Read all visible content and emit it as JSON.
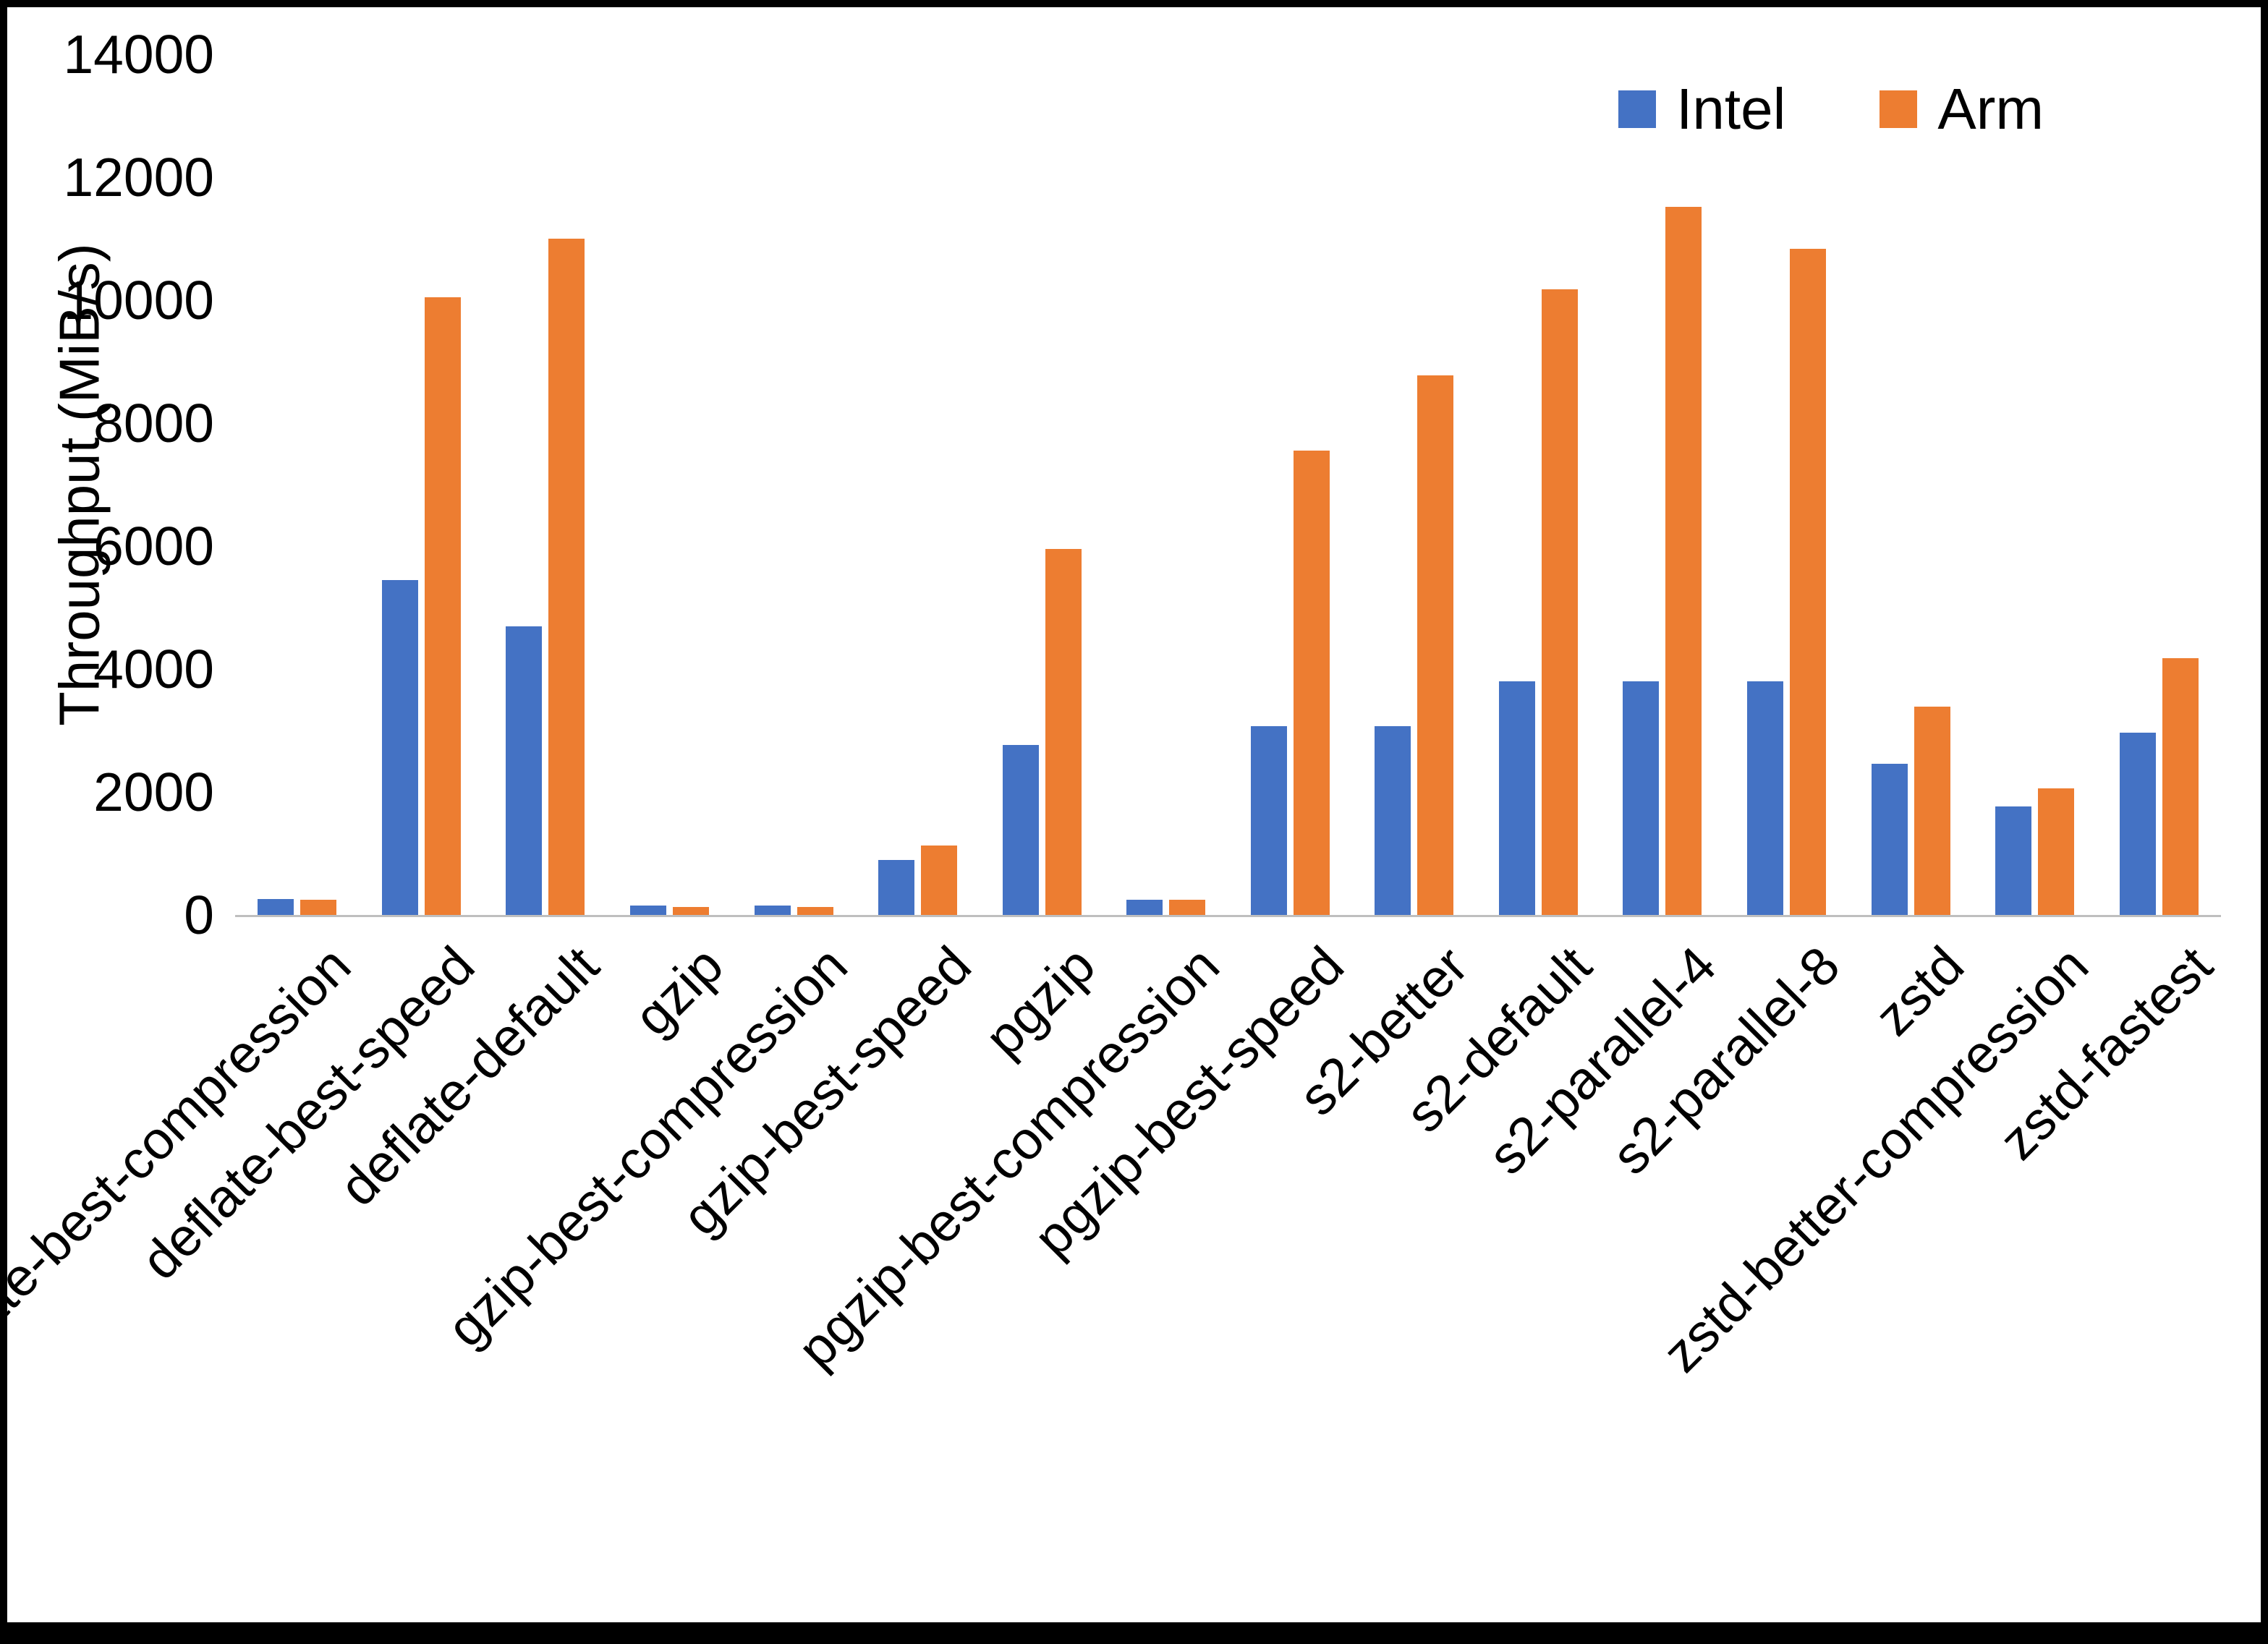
{
  "chart_data": {
    "type": "bar",
    "title": "",
    "xlabel": "",
    "ylabel": "Throughput (MiB/s)",
    "ylim": [
      0,
      14000
    ],
    "yticks": [
      0,
      2000,
      4000,
      6000,
      8000,
      10000,
      12000,
      14000
    ],
    "grid": false,
    "legend_position": "top-right",
    "categories": [
      "deflate-best-compression",
      "deflate-best-speed",
      "deflate-default",
      "gzip",
      "gzip-best-compression",
      "gzip-best-speed",
      "pgzip",
      "pgzip-best-compression",
      "pgzip-best-speed",
      "s2-better",
      "s2-default",
      "s2-parallel-4",
      "s2-parallel-8",
      "zstd",
      "zstd-better-compression",
      "zstd-fastest"
    ],
    "series": [
      {
        "name": "Intel",
        "color": "#4472C4",
        "values": [
          260,
          5450,
          4700,
          150,
          150,
          900,
          2760,
          250,
          3070,
          3070,
          3800,
          3800,
          3800,
          2460,
          1760,
          2960
        ]
      },
      {
        "name": "Arm",
        "color": "#ED7D31",
        "values": [
          250,
          10050,
          11000,
          130,
          130,
          1130,
          5950,
          250,
          7550,
          8780,
          10180,
          11520,
          10830,
          3390,
          2060,
          4180
        ]
      }
    ]
  }
}
